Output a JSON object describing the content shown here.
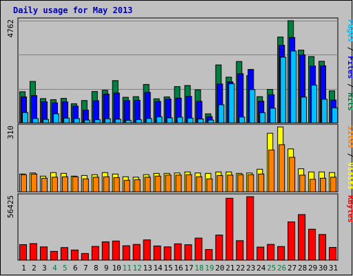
{
  "chart_data": {
    "type": "bar",
    "title": "Daily usage for May 2013",
    "colors": {
      "background": "#C0C0C0",
      "title": "#0000B0",
      "hits": "#008040",
      "files": "#0000FF",
      "pages": "#00C0FF",
      "visits": "#FFFF00",
      "sites": "#FF8000",
      "kbytes": "#FF0000",
      "weekend_label": "#008040",
      "weekday_label": "#000000"
    },
    "days": [
      "1",
      "2",
      "3",
      "4",
      "5",
      "6",
      "7",
      "8",
      "9",
      "10",
      "11",
      "12",
      "13",
      "14",
      "15",
      "16",
      "17",
      "18",
      "19",
      "20",
      "21",
      "22",
      "23",
      "24",
      "25",
      "26",
      "27",
      "28",
      "29",
      "30",
      "31"
    ],
    "weekend_days": [
      "4",
      "5",
      "11",
      "12",
      "18",
      "19",
      "25",
      "26"
    ],
    "panels": [
      {
        "id": "hits-files-pages",
        "max_label": "4762",
        "ymax": 4762,
        "legend": [
          {
            "text": "Pages",
            "color": "#00C0FF"
          },
          {
            "text": " / ",
            "color": "#000000"
          },
          {
            "text": "Files",
            "color": "#0000FF"
          },
          {
            "text": " / ",
            "color": "#000000"
          },
          {
            "text": "Hits",
            "color": "#008040"
          }
        ],
        "series": [
          {
            "name": "Hits",
            "color": "#008040",
            "values": [
              1450,
              1930,
              1130,
              1080,
              1140,
              890,
              1040,
              1460,
              1520,
              1970,
              1190,
              1220,
              1790,
              1120,
              1210,
              1690,
              1740,
              1540,
              420,
              2700,
              2130,
              2860,
              2200,
              1220,
              1560,
              4000,
              4762,
              3390,
              3090,
              2870,
              1490
            ]
          },
          {
            "name": "Files",
            "color": "#0000FF",
            "values": [
              1210,
              1270,
              980,
              930,
              980,
              780,
              590,
              1030,
              1340,
              1390,
              1040,
              1050,
              1420,
              1000,
              1110,
              1150,
              1230,
              1000,
              290,
              1810,
              1910,
              2290,
              2490,
              1010,
              1310,
              3620,
              3980,
              3170,
              2650,
              2660,
              1060
            ]
          },
          {
            "name": "Pages",
            "color": "#00C0FF",
            "values": [
              480,
              200,
              160,
              420,
              220,
              200,
              130,
              150,
              190,
              170,
              120,
              150,
              200,
              280,
              230,
              260,
              220,
              180,
              130,
              840,
              1820,
              270,
              1550,
              470,
              680,
              3060,
              3350,
              1200,
              1760,
              1100,
              700
            ]
          }
        ]
      },
      {
        "id": "visits-sites",
        "max_label": "310",
        "ymax": 310,
        "legend": [
          {
            "text": "Sites",
            "color": "#FF8000"
          },
          {
            "text": " / ",
            "color": "#000000"
          },
          {
            "text": "Visits",
            "color": "#FFFF00"
          }
        ],
        "series": [
          {
            "name": "Visits",
            "color": "#FFFF00",
            "values": [
              85,
              90,
              75,
              92,
              88,
              75,
              78,
              82,
              92,
              85,
              72,
              70,
              82,
              88,
              88,
              90,
              95,
              90,
              88,
              95,
              95,
              88,
              90,
              108,
              280,
              310,
              205,
              110,
              95,
              95,
              92
            ]
          },
          {
            "name": "Sites",
            "color": "#FF8000",
            "values": [
              82,
              85,
              65,
              70,
              72,
              72,
              62,
              70,
              72,
              68,
              55,
              58,
              70,
              75,
              80,
              80,
              82,
              72,
              62,
              78,
              80,
              82,
              82,
              85,
              200,
              225,
              165,
              80,
              60,
              65,
              70
            ]
          }
        ]
      },
      {
        "id": "kbytes",
        "max_label": "56425",
        "ymax": 56425,
        "legend": [
          {
            "text": "KBytes",
            "color": "#FF0000"
          }
        ],
        "series": [
          {
            "name": "KBytes",
            "color": "#FF0000",
            "values": [
              13800,
              14700,
              11800,
              7800,
              11200,
              9000,
              5900,
              12200,
              16300,
              17000,
              12800,
              14000,
              18000,
              12600,
              11800,
              14500,
              13700,
              19600,
              9500,
              22300,
              55000,
              17300,
              56425,
              11600,
              14000,
              12100,
              34000,
              40500,
              27500,
              22800,
              11300
            ]
          }
        ]
      }
    ]
  }
}
